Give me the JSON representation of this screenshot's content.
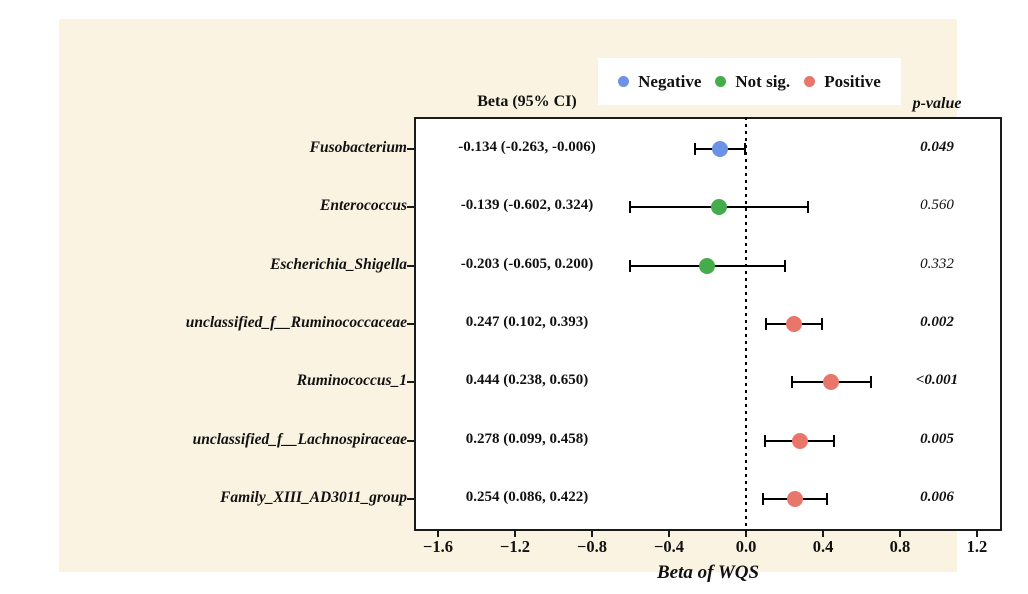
{
  "figure": {
    "background_color": "#FAF3E2",
    "beta_column_header": "Beta (95% CI)",
    "pvalue_column_header": "p-value"
  },
  "legend": {
    "items": [
      {
        "label": "Negative",
        "color": "#6C92E8"
      },
      {
        "label": "Not sig.",
        "color": "#45AC4B"
      },
      {
        "label": "Positive",
        "color": "#E8766B"
      }
    ]
  },
  "chart_data": {
    "type": "scatter",
    "subtype": "forest-plot",
    "title": "",
    "xlabel": "Beta of WQS",
    "ylabel": "",
    "xlim": [
      -1.725,
      1.33
    ],
    "grid": false,
    "zero_reference_line": 0.0,
    "x_ticks": [
      -1.6,
      -1.2,
      -0.8,
      -0.4,
      0.0,
      0.4,
      0.8,
      1.2
    ],
    "x_tick_labels": [
      "−1.6",
      "−1.2",
      "−0.8",
      "−0.4",
      "0.0",
      "0.4",
      "0.8",
      "1.2"
    ],
    "rows": [
      {
        "label": "Fusobacterium",
        "beta": -0.134,
        "ci_low": -0.263,
        "ci_high": -0.006,
        "beta_text": "-0.134 (-0.263, -0.006)",
        "p_value": "0.049",
        "significant": true,
        "group": "Negative",
        "color": "#6C92E8"
      },
      {
        "label": "Enterococcus",
        "beta": -0.139,
        "ci_low": -0.602,
        "ci_high": 0.324,
        "beta_text": "-0.139 (-0.602, 0.324)",
        "p_value": "0.560",
        "significant": false,
        "group": "Not sig.",
        "color": "#45AC4B"
      },
      {
        "label": "Escherichia_Shigella",
        "beta": -0.203,
        "ci_low": -0.605,
        "ci_high": 0.2,
        "beta_text": "-0.203 (-0.605, 0.200)",
        "p_value": "0.332",
        "significant": false,
        "group": "Not sig.",
        "color": "#45AC4B"
      },
      {
        "label": "unclassified_f__Ruminococcaceae",
        "beta": 0.247,
        "ci_low": 0.102,
        "ci_high": 0.393,
        "beta_text": "0.247 (0.102, 0.393)",
        "p_value": "0.002",
        "significant": true,
        "group": "Positive",
        "color": "#E8766B"
      },
      {
        "label": "Ruminococcus_1",
        "beta": 0.444,
        "ci_low": 0.238,
        "ci_high": 0.65,
        "beta_text": "0.444 (0.238, 0.650)",
        "p_value": "<0.001",
        "significant": true,
        "group": "Positive",
        "color": "#E8766B"
      },
      {
        "label": "unclassified_f__Lachnospiraceae",
        "beta": 0.278,
        "ci_low": 0.099,
        "ci_high": 0.458,
        "beta_text": "0.278 (0.099, 0.458)",
        "p_value": "0.005",
        "significant": true,
        "group": "Positive",
        "color": "#E8766B"
      },
      {
        "label": "Family_XIII_AD3011_group",
        "beta": 0.254,
        "ci_low": 0.086,
        "ci_high": 0.422,
        "beta_text": "0.254 (0.086, 0.422)",
        "p_value": "0.006",
        "significant": true,
        "group": "Positive",
        "color": "#E8766B"
      }
    ]
  }
}
